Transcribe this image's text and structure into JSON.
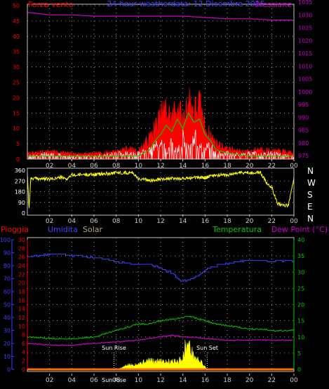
{
  "colors": {
    "background": "#000000",
    "red": "#ff0000",
    "blue": "#4040ff",
    "magenta": "#cc00cc",
    "green": "#00c800",
    "yellow": "#ffff00",
    "white": "#ffffff",
    "grey": "#cccccc",
    "khaki": "#b0a878",
    "gridline": "#c0c0c0"
  },
  "chart_data": [
    {
      "type": "line",
      "title": "24 hour weatherdata:  12 Dicembre 2015",
      "left_label": "Forza vento",
      "right_label": "Pressione",
      "x_ticks": [
        "02",
        "04",
        "06",
        "08",
        "10",
        "12",
        "14",
        "16",
        "18",
        "20",
        "22",
        "00"
      ],
      "y_left_ticks": [
        0,
        5,
        10,
        15,
        20,
        25,
        30,
        35,
        40,
        45,
        50
      ],
      "y_left_range": [
        0,
        50
      ],
      "y_right_ticks": [
        975,
        980,
        985,
        990,
        995,
        1000,
        1005,
        1010,
        1015,
        1020,
        1025,
        1030,
        1035
      ],
      "y_right_range": [
        975,
        1035
      ],
      "grid": true,
      "series": [
        {
          "key": "pressure",
          "axis": "right",
          "style": "line",
          "x": [
            0,
            2,
            4,
            6,
            8,
            10,
            12,
            14,
            16,
            18,
            20,
            22,
            24
          ],
          "values": [
            1031,
            1030,
            1030,
            1029.5,
            1029.5,
            1029.5,
            1029.5,
            1029.5,
            1029,
            1028.5,
            1028.5,
            1028,
            1028
          ]
        },
        {
          "key": "gust",
          "axis": "left",
          "style": "spiky",
          "x": [
            0,
            2,
            4,
            6,
            8,
            9,
            10,
            11,
            11.5,
            12,
            12.5,
            13,
            13.5,
            14,
            14.5,
            15,
            15.5,
            16,
            16.5,
            17,
            18,
            19,
            20,
            21,
            22,
            23,
            24
          ],
          "values": [
            2,
            3,
            2,
            2,
            3,
            4,
            3,
            8,
            12,
            16,
            19,
            15,
            21,
            14,
            23,
            18,
            21,
            12,
            9,
            6,
            4,
            3,
            3,
            4,
            3,
            3,
            2
          ]
        },
        {
          "key": "avg",
          "axis": "left",
          "style": "line",
          "x": [
            0,
            4,
            8,
            10,
            11,
            11.5,
            12,
            12.5,
            13,
            13.5,
            14,
            14.5,
            15,
            15.5,
            16,
            16.5,
            17,
            18,
            20,
            24
          ],
          "values": [
            1,
            1,
            1,
            1,
            3,
            6,
            8,
            11,
            9,
            13,
            10,
            15,
            12,
            13,
            8,
            6,
            3,
            2,
            1,
            1
          ]
        },
        {
          "key": "speed",
          "axis": "left",
          "style": "spiky",
          "x": [
            0,
            2,
            4,
            6,
            8,
            10,
            11,
            11.5,
            12,
            12.5,
            13,
            13.5,
            14,
            14.5,
            15,
            15.5,
            16,
            16.5,
            17,
            18,
            20,
            22,
            24
          ],
          "values": [
            1,
            2,
            1,
            1,
            2,
            2,
            3,
            5,
            6,
            3,
            7,
            4,
            8,
            5,
            9,
            4,
            6,
            4,
            3,
            2,
            2,
            2,
            1
          ]
        }
      ]
    },
    {
      "type": "line",
      "y_left_ticks": [
        0,
        90,
        180,
        270,
        360
      ],
      "y_left_range": [
        0,
        360
      ],
      "compass_labels": [
        "N",
        "W",
        "S",
        "E",
        "N"
      ],
      "x_ticks": [
        "02",
        "04",
        "06",
        "08",
        "10",
        "12",
        "14",
        "16",
        "18",
        "20",
        "22",
        "00"
      ],
      "grid": true,
      "series": [
        {
          "key": "direction",
          "style": "noisy",
          "x": [
            0,
            0.15,
            0.3,
            1,
            2,
            3,
            3.5,
            4,
            4.5,
            5,
            6,
            7,
            8,
            9,
            9.5,
            10,
            11,
            12,
            13,
            14,
            15,
            16,
            17,
            18,
            19,
            20,
            21,
            21.5,
            22,
            22.5,
            23,
            23.5,
            24
          ],
          "values": [
            350,
            30,
            290,
            290,
            285,
            300,
            285,
            320,
            320,
            325,
            325,
            330,
            340,
            340,
            340,
            290,
            275,
            290,
            290,
            290,
            300,
            300,
            320,
            320,
            340,
            340,
            340,
            260,
            220,
            80,
            70,
            60,
            300
          ]
        }
      ]
    },
    {
      "type": "line",
      "labels": {
        "rain": "Pioggia",
        "humidity": "Umidita",
        "solar": "Solar",
        "temperature": "Temperatura",
        "dewpoint": "Dew Point (°C)"
      },
      "x_ticks": [
        "02",
        "04",
        "06",
        "08",
        "10",
        "12",
        "14",
        "16",
        "18",
        "20",
        "22",
        "00"
      ],
      "y_humidity_ticks": [
        0,
        10,
        20,
        30,
        40,
        50,
        60,
        70,
        80,
        90,
        100
      ],
      "y_rain_ticks": [
        0,
        2,
        4,
        6,
        8,
        10,
        12,
        14,
        16,
        18,
        20,
        22,
        24,
        26,
        28,
        30
      ],
      "y_temp_ticks": [
        0,
        5,
        10,
        15,
        20,
        25,
        30,
        35,
        40
      ],
      "y_temp_range": [
        0,
        40
      ],
      "grid": true,
      "annotations": [
        {
          "text": "Sun Rise",
          "x": 7.8
        },
        {
          "text": "Sun Set",
          "x": 16.2
        },
        {
          "text": "Sun Rise",
          "x": 7.8
        }
      ],
      "series": [
        {
          "key": "humidity",
          "axis": "humidity",
          "style": "step",
          "x": [
            0,
            1,
            2,
            3,
            4,
            5,
            6,
            7,
            8,
            9,
            10,
            11,
            12,
            13,
            13.5,
            14,
            14.5,
            15,
            15.5,
            16,
            17,
            18,
            19,
            20,
            21,
            22,
            23,
            24
          ],
          "values": [
            87,
            88,
            89,
            89,
            88,
            87,
            86,
            85,
            83,
            82,
            81,
            81,
            78,
            74,
            70,
            68,
            69,
            71,
            73,
            77,
            80,
            82,
            83,
            84,
            84,
            83,
            84,
            84
          ]
        },
        {
          "key": "temperature",
          "axis": "temp",
          "style": "line",
          "x": [
            0,
            2,
            4,
            6,
            7,
            8,
            9,
            10,
            11,
            12,
            13,
            14,
            14.5,
            15,
            16,
            17,
            18,
            19,
            20,
            21,
            22,
            23,
            24
          ],
          "values": [
            10,
            9.5,
            9.5,
            10,
            11,
            12,
            13,
            14,
            14,
            15,
            15.5,
            16,
            16.5,
            16,
            15,
            14,
            13.5,
            13,
            12.5,
            12.5,
            12,
            12,
            12
          ]
        },
        {
          "key": "dewpoint",
          "axis": "temp",
          "style": "line",
          "x": [
            0,
            2,
            4,
            6,
            8,
            10,
            12,
            13,
            14,
            15,
            16,
            18,
            20,
            22,
            24
          ],
          "values": [
            8,
            7.5,
            7.5,
            8,
            8.5,
            9,
            10,
            10.5,
            10,
            10,
            9.5,
            9,
            9,
            9,
            9
          ]
        },
        {
          "key": "solar",
          "axis": "temp",
          "style": "area",
          "x": [
            7.8,
            8.5,
            9,
            9.5,
            10,
            10.5,
            11,
            11.5,
            12,
            12.5,
            13,
            13.5,
            14,
            14.2,
            14.5,
            14.8,
            15,
            15.5,
            16,
            16.2
          ],
          "values": [
            0,
            0.5,
            1.5,
            1.5,
            2,
            2.5,
            3,
            2.5,
            3.5,
            2.5,
            3,
            2.5,
            4,
            7.5,
            8.5,
            6,
            4,
            3,
            1,
            0
          ]
        },
        {
          "key": "rain",
          "axis": "temp",
          "style": "area",
          "values": [
            0
          ]
        }
      ]
    }
  ]
}
